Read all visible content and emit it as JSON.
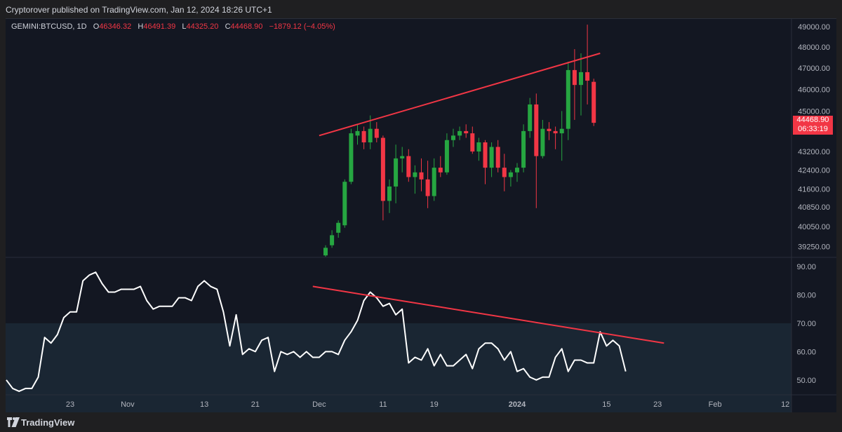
{
  "header": {
    "published": "Cryptorover published on TradingView.com, Jan 12, 2024 18:26 UTC+1"
  },
  "legend": {
    "symbol": "GEMINI:BTCUSD, 1D",
    "o_label": "O",
    "o_value": "46346.32",
    "h_label": "H",
    "h_value": "46491.39",
    "l_label": "L",
    "l_value": "44325.20",
    "c_label": "C",
    "c_value": "44468.90",
    "change": "−1879.12 (−4.05%)"
  },
  "price_tag": {
    "price": "44468.90",
    "countdown": "06:33:19"
  },
  "footer": {
    "brand": "TradingView"
  },
  "colors": {
    "up": "#26a641",
    "down": "#f23645",
    "background": "#131722",
    "trendline": "#f23645",
    "rsi_line": "#ffffff",
    "rsi_band": "#1a2633"
  },
  "chart_data": {
    "type": "candlestick",
    "x_ticks": [
      {
        "label": "23",
        "index": 10
      },
      {
        "label": "Nov",
        "index": 19
      },
      {
        "label": "13",
        "index": 31
      },
      {
        "label": "21",
        "index": 39
      },
      {
        "label": "Dec",
        "index": 49
      },
      {
        "label": "11",
        "index": 59
      },
      {
        "label": "19",
        "index": 67
      },
      {
        "label": "2024",
        "index": 80
      },
      {
        "label": "15",
        "index": 94
      },
      {
        "label": "23",
        "index": 102
      },
      {
        "label": "Feb",
        "index": 111
      },
      {
        "label": "12",
        "index": 122
      }
    ],
    "price_ticks": [
      "49000.00",
      "48000.00",
      "47000.00",
      "46000.00",
      "45000.00",
      "43200.00",
      "42400.00",
      "41600.00",
      "40850.00",
      "40050.00",
      "39250.00"
    ],
    "price_levels": [
      49000,
      48000,
      47000,
      46000,
      45000,
      43200,
      42400,
      41600,
      40850,
      40050,
      39250
    ],
    "candles": [
      {
        "i": 50,
        "o": 38900,
        "h": 39300,
        "l": 38800,
        "c": 39200
      },
      {
        "i": 51,
        "o": 39300,
        "h": 39900,
        "l": 39200,
        "c": 39700
      },
      {
        "i": 52,
        "o": 39800,
        "h": 40300,
        "l": 39600,
        "c": 40200
      },
      {
        "i": 53,
        "o": 40100,
        "h": 42000,
        "l": 40000,
        "c": 41900
      },
      {
        "i": 54,
        "o": 41900,
        "h": 44200,
        "l": 41800,
        "c": 44000
      },
      {
        "i": 55,
        "o": 43900,
        "h": 44400,
        "l": 43500,
        "c": 44100
      },
      {
        "i": 56,
        "o": 44100,
        "h": 44300,
        "l": 43300,
        "c": 43600
      },
      {
        "i": 57,
        "o": 43600,
        "h": 44800,
        "l": 43300,
        "c": 44200
      },
      {
        "i": 58,
        "o": 44200,
        "h": 44500,
        "l": 43600,
        "c": 43800
      },
      {
        "i": 59,
        "o": 43800,
        "h": 43900,
        "l": 40300,
        "c": 41100
      },
      {
        "i": 60,
        "o": 41100,
        "h": 42000,
        "l": 40600,
        "c": 41700
      },
      {
        "i": 61,
        "o": 41700,
        "h": 43500,
        "l": 41000,
        "c": 42900
      },
      {
        "i": 62,
        "o": 42900,
        "h": 43400,
        "l": 42300,
        "c": 43000
      },
      {
        "i": 63,
        "o": 43000,
        "h": 43300,
        "l": 41900,
        "c": 42100
      },
      {
        "i": 64,
        "o": 42100,
        "h": 42600,
        "l": 41400,
        "c": 42300
      },
      {
        "i": 65,
        "o": 42300,
        "h": 42900,
        "l": 41500,
        "c": 42000
      },
      {
        "i": 66,
        "o": 42000,
        "h": 42800,
        "l": 40800,
        "c": 41300
      },
      {
        "i": 67,
        "o": 41300,
        "h": 42900,
        "l": 41100,
        "c": 42500
      },
      {
        "i": 68,
        "o": 42500,
        "h": 43000,
        "l": 42100,
        "c": 42300
      },
      {
        "i": 69,
        "o": 42300,
        "h": 44000,
        "l": 42200,
        "c": 43700
      },
      {
        "i": 70,
        "o": 43700,
        "h": 44200,
        "l": 43400,
        "c": 43900
      },
      {
        "i": 71,
        "o": 43900,
        "h": 44300,
        "l": 43700,
        "c": 44100
      },
      {
        "i": 72,
        "o": 44100,
        "h": 44400,
        "l": 43800,
        "c": 44000
      },
      {
        "i": 73,
        "o": 44000,
        "h": 44300,
        "l": 43100,
        "c": 43200
      },
      {
        "i": 74,
        "o": 43200,
        "h": 43800,
        "l": 42800,
        "c": 43600
      },
      {
        "i": 75,
        "o": 43600,
        "h": 43700,
        "l": 41800,
        "c": 42500
      },
      {
        "i": 76,
        "o": 42500,
        "h": 43600,
        "l": 42100,
        "c": 43400
      },
      {
        "i": 77,
        "o": 43400,
        "h": 43700,
        "l": 42300,
        "c": 42500
      },
      {
        "i": 78,
        "o": 42500,
        "h": 43100,
        "l": 41500,
        "c": 42100
      },
      {
        "i": 79,
        "o": 42100,
        "h": 42400,
        "l": 41700,
        "c": 42300
      },
      {
        "i": 80,
        "o": 42300,
        "h": 42700,
        "l": 41900,
        "c": 42500
      },
      {
        "i": 81,
        "o": 42500,
        "h": 44400,
        "l": 42300,
        "c": 44100
      },
      {
        "i": 82,
        "o": 44100,
        "h": 45600,
        "l": 43800,
        "c": 45300
      },
      {
        "i": 83,
        "o": 45300,
        "h": 45800,
        "l": 40800,
        "c": 43000
      },
      {
        "i": 84,
        "o": 43000,
        "h": 44600,
        "l": 42900,
        "c": 44200
      },
      {
        "i": 85,
        "o": 44200,
        "h": 44500,
        "l": 43700,
        "c": 44100
      },
      {
        "i": 86,
        "o": 44100,
        "h": 44300,
        "l": 43300,
        "c": 44000
      },
      {
        "i": 87,
        "o": 44000,
        "h": 45000,
        "l": 42800,
        "c": 44200
      },
      {
        "i": 88,
        "o": 44200,
        "h": 47300,
        "l": 43700,
        "c": 46900
      },
      {
        "i": 89,
        "o": 46900,
        "h": 47900,
        "l": 44600,
        "c": 46200
      },
      {
        "i": 90,
        "o": 46200,
        "h": 47700,
        "l": 44800,
        "c": 46800
      },
      {
        "i": 91,
        "o": 46800,
        "h": 49100,
        "l": 45300,
        "c": 46400
      },
      {
        "i": 92,
        "o": 46346.32,
        "h": 46491.39,
        "l": 44325.2,
        "c": 44468.9
      }
    ],
    "price_trendline": {
      "from": {
        "i": 49,
        "price": 43900
      },
      "to": {
        "i": 93,
        "price": 47700
      }
    },
    "rsi": {
      "y_ticks": [
        "90.00",
        "80.00",
        "70.00",
        "60.00",
        "50.00"
      ],
      "levels": [
        90,
        80,
        70,
        60,
        50
      ],
      "band": [
        30,
        70
      ],
      "ylim": [
        45,
        93
      ],
      "values": [
        50,
        47,
        46,
        47,
        47,
        51,
        65,
        63,
        66,
        72,
        74,
        74,
        85,
        87,
        88,
        84,
        81,
        81,
        82,
        82,
        82,
        83,
        78,
        75,
        76,
        76,
        76,
        79,
        79,
        78,
        83,
        85,
        83,
        82,
        74,
        62,
        73,
        59,
        61,
        60,
        64,
        65,
        53,
        60,
        59,
        60,
        58,
        60,
        58,
        58,
        60,
        60,
        59,
        64,
        67,
        71,
        78,
        81,
        79,
        76,
        77,
        73,
        75,
        56,
        58,
        57,
        61,
        55,
        59,
        55,
        55,
        57,
        59,
        54,
        61,
        63,
        63,
        61,
        57,
        60,
        53,
        54,
        51,
        50,
        51,
        51,
        58,
        61,
        53,
        57,
        57,
        56,
        56,
        67,
        62,
        64,
        62,
        53
      ]
    },
    "rsi_trendline": {
      "from": {
        "i": 48,
        "value": 83
      },
      "to": {
        "i": 103,
        "value": 63
      }
    }
  }
}
